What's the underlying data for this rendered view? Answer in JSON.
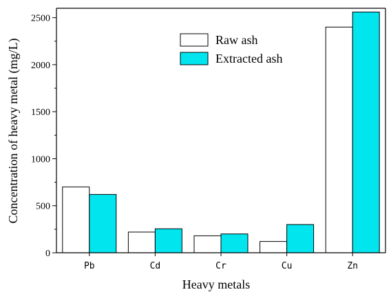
{
  "chart_data": {
    "type": "bar",
    "categories": [
      "Pb",
      "Cd",
      "Cr",
      "Cu",
      "Zn"
    ],
    "series": [
      {
        "name": "Raw ash",
        "values": [
          700,
          220,
          180,
          120,
          2400
        ],
        "color": "#ffffff"
      },
      {
        "name": "Extracted ash",
        "values": [
          620,
          255,
          200,
          300,
          2560
        ],
        "color": "#00e5ee"
      }
    ],
    "title": "",
    "xlabel": "Heavy metals",
    "ylabel": "Concentration of heavy metal (mg/L)",
    "ylim": [
      0,
      2600
    ],
    "yticks": [
      0,
      500,
      1000,
      1500,
      2000,
      2500
    ],
    "grid": false,
    "legend_position": "top-center"
  }
}
